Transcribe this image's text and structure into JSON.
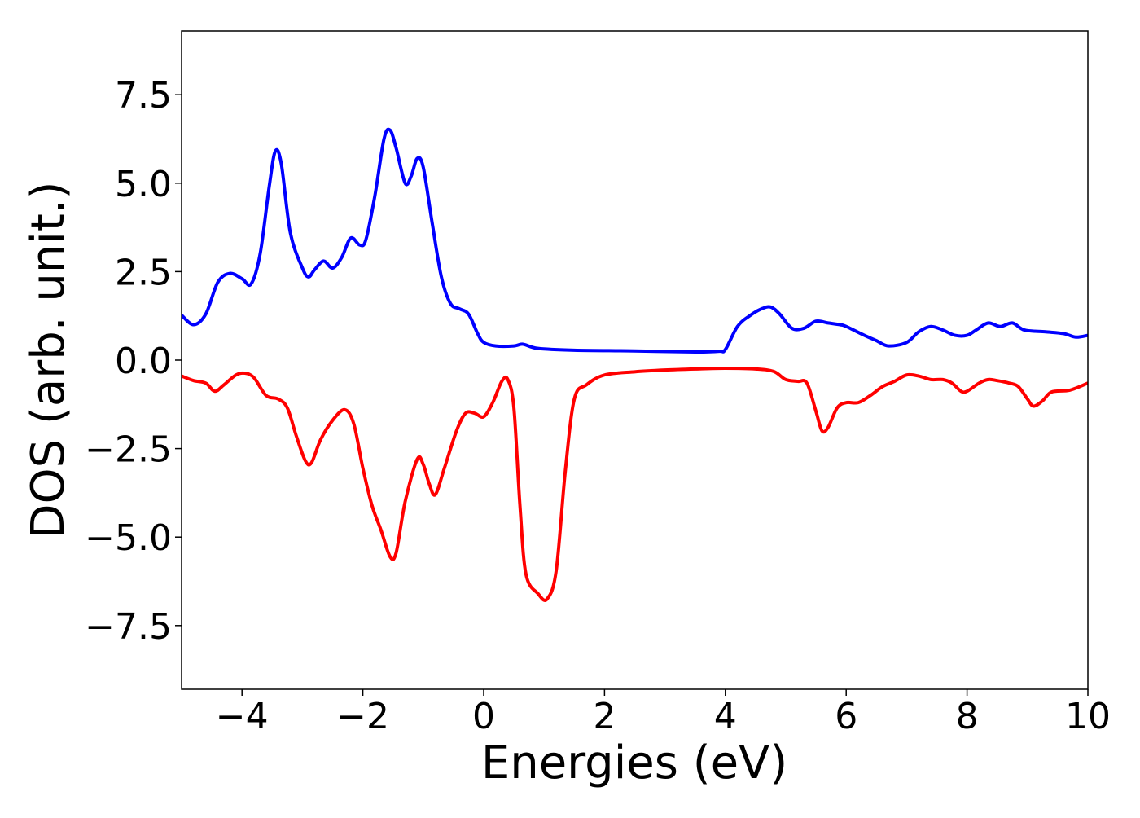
{
  "chart_data": {
    "type": "line",
    "xlabel": "Energies (eV)",
    "ylabel": "DOS (arb. unit.)",
    "xlim": [
      -5,
      10
    ],
    "ylim": [
      -9.3,
      9.3
    ],
    "xticks": [
      {
        "value": -4,
        "label": "−4"
      },
      {
        "value": -2,
        "label": "−2"
      },
      0,
      2,
      4,
      6,
      8,
      10
    ],
    "yticks": [
      {
        "value": 7.5,
        "label": "7.5"
      },
      {
        "value": 5,
        "label": "5.0"
      },
      {
        "value": 2.5,
        "label": "2.5"
      },
      {
        "value": 0,
        "label": "0.0"
      },
      {
        "value": -2.5,
        "label": "−2.5"
      },
      {
        "value": -5,
        "label": "−5.0"
      },
      {
        "value": -7.5,
        "label": "−7.5"
      }
    ],
    "grid": false,
    "series": [
      {
        "color": "#0000ff",
        "x": [
          -5.0,
          -4.8,
          -4.6,
          -4.4,
          -4.2,
          -4.0,
          -3.85,
          -3.7,
          -3.55,
          -3.45,
          -3.35,
          -3.2,
          -3.0,
          -2.9,
          -2.8,
          -2.65,
          -2.5,
          -2.35,
          -2.2,
          -2.05,
          -1.95,
          -1.8,
          -1.65,
          -1.55,
          -1.45,
          -1.3,
          -1.2,
          -1.1,
          -1.0,
          -0.85,
          -0.7,
          -0.55,
          -0.4,
          -0.25,
          -0.1,
          0.0,
          0.2,
          0.5,
          0.65,
          0.9,
          1.5,
          2.5,
          3.5,
          3.9,
          4.0,
          4.2,
          4.4,
          4.6,
          4.75,
          4.9,
          5.1,
          5.3,
          5.5,
          5.7,
          5.9,
          6.0,
          6.3,
          6.5,
          6.7,
          7.0,
          7.2,
          7.4,
          7.6,
          7.8,
          8.0,
          8.15,
          8.35,
          8.55,
          8.75,
          8.95,
          9.3,
          9.6,
          9.8,
          10.0
        ],
        "values": [
          1.27,
          1.0,
          1.3,
          2.2,
          2.45,
          2.3,
          2.15,
          3.0,
          4.9,
          5.9,
          5.55,
          3.6,
          2.6,
          2.35,
          2.55,
          2.8,
          2.6,
          2.9,
          3.45,
          3.25,
          3.4,
          4.65,
          6.25,
          6.5,
          6.0,
          5.0,
          5.2,
          5.7,
          5.45,
          3.85,
          2.35,
          1.6,
          1.45,
          1.3,
          0.75,
          0.5,
          0.4,
          0.4,
          0.45,
          0.33,
          0.28,
          0.26,
          0.23,
          0.25,
          0.3,
          0.95,
          1.25,
          1.45,
          1.5,
          1.3,
          0.9,
          0.9,
          1.1,
          1.05,
          1.0,
          0.95,
          0.7,
          0.55,
          0.4,
          0.5,
          0.8,
          0.95,
          0.85,
          0.7,
          0.7,
          0.85,
          1.05,
          0.95,
          1.05,
          0.85,
          0.8,
          0.75,
          0.65,
          0.7
        ]
      },
      {
        "color": "#ff0000",
        "x": [
          -5.0,
          -4.8,
          -4.6,
          -4.45,
          -4.3,
          -4.1,
          -3.95,
          -3.8,
          -3.6,
          -3.4,
          -3.25,
          -3.1,
          -2.95,
          -2.85,
          -2.7,
          -2.5,
          -2.3,
          -2.15,
          -2.0,
          -1.85,
          -1.7,
          -1.55,
          -1.45,
          -1.3,
          -1.1,
          -1.0,
          -0.9,
          -0.8,
          -0.65,
          -0.45,
          -0.3,
          -0.15,
          0.0,
          0.15,
          0.3,
          0.4,
          0.5,
          0.6,
          0.7,
          0.9,
          1.05,
          1.2,
          1.35,
          1.5,
          1.7,
          2.0,
          2.5,
          3.0,
          3.5,
          4.0,
          4.5,
          4.8,
          5.0,
          5.2,
          5.35,
          5.5,
          5.6,
          5.7,
          5.85,
          6.0,
          6.2,
          6.4,
          6.6,
          6.8,
          7.0,
          7.2,
          7.4,
          7.6,
          7.75,
          7.9,
          8.0,
          8.2,
          8.35,
          8.5,
          8.7,
          8.85,
          9.0,
          9.1,
          9.25,
          9.4,
          9.7,
          10.0
        ],
        "values": [
          -0.45,
          -0.58,
          -0.65,
          -0.88,
          -0.7,
          -0.42,
          -0.37,
          -0.5,
          -1.0,
          -1.1,
          -1.35,
          -2.15,
          -2.85,
          -2.9,
          -2.25,
          -1.7,
          -1.4,
          -1.8,
          -3.05,
          -4.1,
          -4.8,
          -5.55,
          -5.45,
          -4.0,
          -2.8,
          -2.95,
          -3.5,
          -3.8,
          -3.05,
          -2.0,
          -1.5,
          -1.5,
          -1.6,
          -1.2,
          -0.6,
          -0.55,
          -1.35,
          -4.1,
          -6.05,
          -6.6,
          -6.75,
          -5.95,
          -3.15,
          -1.1,
          -0.7,
          -0.42,
          -0.33,
          -0.28,
          -0.25,
          -0.23,
          -0.25,
          -0.32,
          -0.55,
          -0.6,
          -0.65,
          -1.45,
          -2.0,
          -1.9,
          -1.35,
          -1.2,
          -1.2,
          -1.0,
          -0.75,
          -0.6,
          -0.42,
          -0.45,
          -0.55,
          -0.55,
          -0.65,
          -0.88,
          -0.88,
          -0.65,
          -0.55,
          -0.58,
          -0.65,
          -0.75,
          -1.1,
          -1.3,
          -1.15,
          -0.9,
          -0.85,
          -0.65
        ]
      }
    ]
  }
}
